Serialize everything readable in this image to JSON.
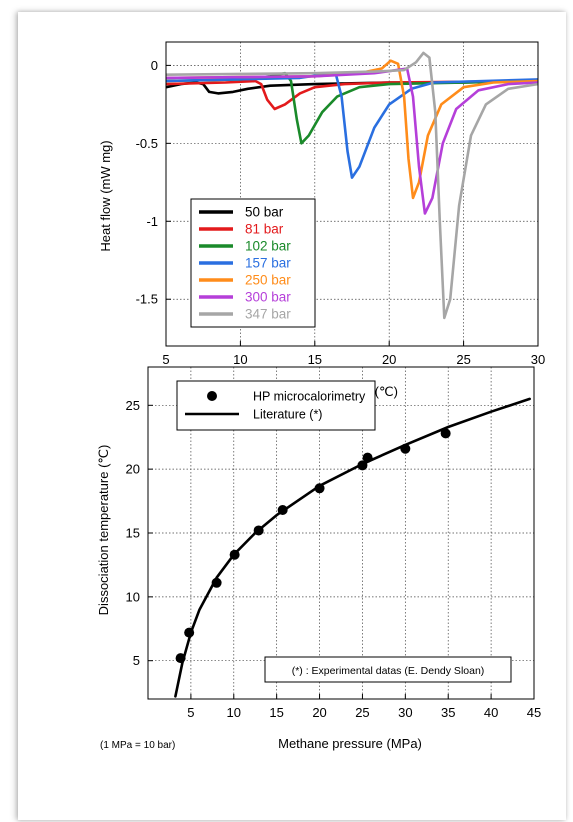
{
  "chart_data": [
    {
      "type": "line",
      "title": "",
      "xlabel": "Temperature  (℃)",
      "ylabel": "Heat flow  (mW mg)",
      "xlim": [
        5,
        30
      ],
      "ylim": [
        -1.8,
        0.15
      ],
      "x_ticks": [
        5,
        10,
        15,
        20,
        25,
        30
      ],
      "y_ticks": [
        0,
        -0.5,
        -1,
        -1.5
      ],
      "y_tick_labels": [
        "0",
        "-0.5",
        "-1",
        "-1.5"
      ],
      "grid": true,
      "legend_position": "bottom-left",
      "series": [
        {
          "name": "50 bar",
          "color": "#000000",
          "points": [
            [
              5,
              -0.14
            ],
            [
              6,
              -0.12
            ],
            [
              7,
              -0.11
            ],
            [
              7.5,
              -0.12
            ],
            [
              7.9,
              -0.17
            ],
            [
              8.5,
              -0.18
            ],
            [
              9.5,
              -0.17
            ],
            [
              10.5,
              -0.15
            ],
            [
              12,
              -0.13
            ],
            [
              15,
              -0.12
            ],
            [
              20,
              -0.11
            ],
            [
              25,
              -0.11
            ],
            [
              30,
              -0.1
            ]
          ]
        },
        {
          "name": "81 bar",
          "color": "#e31a1c",
          "points": [
            [
              5,
              -0.12
            ],
            [
              9,
              -0.11
            ],
            [
              11,
              -0.1
            ],
            [
              11.4,
              -0.12
            ],
            [
              11.8,
              -0.22
            ],
            [
              12.3,
              -0.28
            ],
            [
              13,
              -0.25
            ],
            [
              14,
              -0.18
            ],
            [
              15,
              -0.14
            ],
            [
              17,
              -0.12
            ],
            [
              20,
              -0.11
            ],
            [
              30,
              -0.1
            ]
          ]
        },
        {
          "name": "102 bar",
          "color": "#1a8a2a",
          "points": [
            [
              5,
              -0.1
            ],
            [
              10,
              -0.09
            ],
            [
              12,
              -0.07
            ],
            [
              13,
              -0.05
            ],
            [
              13.4,
              -0.1
            ],
            [
              13.8,
              -0.35
            ],
            [
              14.1,
              -0.5
            ],
            [
              14.6,
              -0.45
            ],
            [
              15.5,
              -0.3
            ],
            [
              16.5,
              -0.2
            ],
            [
              18,
              -0.14
            ],
            [
              20,
              -0.12
            ],
            [
              30,
              -0.1
            ]
          ]
        },
        {
          "name": "157 bar",
          "color": "#2a6fe0",
          "points": [
            [
              5,
              -0.1
            ],
            [
              14,
              -0.08
            ],
            [
              15.5,
              -0.06
            ],
            [
              16.4,
              -0.05
            ],
            [
              16.8,
              -0.2
            ],
            [
              17.2,
              -0.55
            ],
            [
              17.5,
              -0.72
            ],
            [
              18,
              -0.65
            ],
            [
              19,
              -0.4
            ],
            [
              20,
              -0.25
            ],
            [
              21.5,
              -0.15
            ],
            [
              23,
              -0.11
            ],
            [
              30,
              -0.09
            ]
          ]
        },
        {
          "name": "250 bar",
          "color": "#ff8c1a",
          "points": [
            [
              5,
              -0.08
            ],
            [
              15,
              -0.07
            ],
            [
              18,
              -0.05
            ],
            [
              19.5,
              -0.02
            ],
            [
              20.1,
              0.03
            ],
            [
              20.6,
              0.01
            ],
            [
              21,
              -0.2
            ],
            [
              21.3,
              -0.6
            ],
            [
              21.6,
              -0.85
            ],
            [
              22,
              -0.75
            ],
            [
              22.6,
              -0.45
            ],
            [
              23.5,
              -0.25
            ],
            [
              25,
              -0.14
            ],
            [
              27,
              -0.11
            ],
            [
              30,
              -0.1
            ]
          ]
        },
        {
          "name": "300 bar",
          "color": "#b53fd9",
          "points": [
            [
              5,
              -0.08
            ],
            [
              15,
              -0.07
            ],
            [
              19,
              -0.05
            ],
            [
              20.5,
              -0.03
            ],
            [
              21.2,
              -0.02
            ],
            [
              21.6,
              -0.2
            ],
            [
              22,
              -0.65
            ],
            [
              22.4,
              -0.95
            ],
            [
              22.9,
              -0.85
            ],
            [
              23.6,
              -0.5
            ],
            [
              24.5,
              -0.28
            ],
            [
              26,
              -0.16
            ],
            [
              28,
              -0.12
            ],
            [
              30,
              -0.11
            ]
          ]
        },
        {
          "name": "347 bar",
          "color": "#a6a6a6",
          "points": [
            [
              5,
              -0.06
            ],
            [
              15,
              -0.05
            ],
            [
              19,
              -0.04
            ],
            [
              21,
              -0.03
            ],
            [
              21.8,
              0.02
            ],
            [
              22.3,
              0.08
            ],
            [
              22.7,
              0.05
            ],
            [
              23.1,
              -0.3
            ],
            [
              23.4,
              -1.0
            ],
            [
              23.7,
              -1.62
            ],
            [
              24.1,
              -1.5
            ],
            [
              24.7,
              -0.9
            ],
            [
              25.5,
              -0.45
            ],
            [
              26.5,
              -0.25
            ],
            [
              28,
              -0.15
            ],
            [
              30,
              -0.12
            ]
          ]
        }
      ]
    },
    {
      "type": "scatter",
      "title": "",
      "xlabel": "Methane pressure  (MPa)",
      "ylabel": "Dissociation temperature  (℃)",
      "xlim": [
        0,
        45
      ],
      "ylim": [
        2,
        28
      ],
      "x_ticks": [
        5,
        10,
        15,
        20,
        25,
        30,
        35,
        40,
        45
      ],
      "y_ticks": [
        5,
        10,
        15,
        20,
        25
      ],
      "grid": true,
      "legend_position": "top-left",
      "series": [
        {
          "name": "HP microcalorimetry",
          "kind": "scatter",
          "color": "#000000",
          "points": [
            [
              3.8,
              5.2
            ],
            [
              4.8,
              7.2
            ],
            [
              8,
              11.1
            ],
            [
              10.1,
              13.3
            ],
            [
              12.9,
              15.2
            ],
            [
              15.7,
              16.8
            ],
            [
              20,
              18.5
            ],
            [
              25,
              20.3
            ],
            [
              25.6,
              20.9
            ],
            [
              30,
              21.6
            ],
            [
              34.7,
              22.8
            ]
          ]
        },
        {
          "name": "Literature (*)",
          "kind": "line",
          "color": "#000000",
          "points": [
            [
              3.2,
              2.2
            ],
            [
              4,
              4.8
            ],
            [
              5,
              7.2
            ],
            [
              6,
              9.0
            ],
            [
              8,
              11.5
            ],
            [
              10,
              13.3
            ],
            [
              12.5,
              15.0
            ],
            [
              15,
              16.4
            ],
            [
              20,
              18.7
            ],
            [
              25,
              20.4
            ],
            [
              30,
              21.9
            ],
            [
              35,
              23.3
            ],
            [
              40,
              24.5
            ],
            [
              44.5,
              25.5
            ]
          ]
        }
      ]
    }
  ],
  "notes": {
    "annotation": "(*) : Experimental datas  (E. Dendy Sloan)",
    "conversion": "(1 MPa = 10 bar)"
  }
}
